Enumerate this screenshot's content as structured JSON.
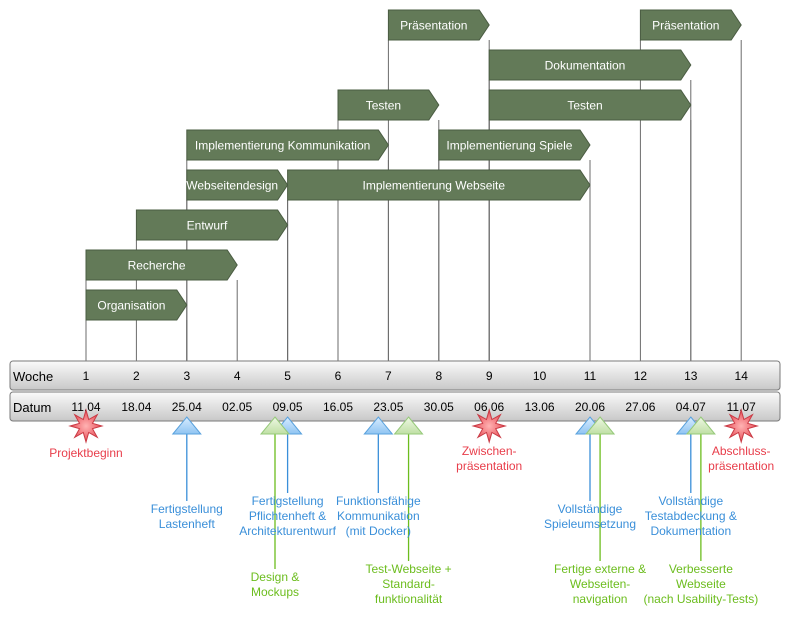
{
  "timeline": {
    "week_label": "Woche",
    "date_label": "Datum",
    "weeks": [
      "1",
      "2",
      "3",
      "4",
      "5",
      "6",
      "7",
      "8",
      "9",
      "10",
      "11",
      "12",
      "13",
      "14"
    ],
    "dates": [
      "11.04",
      "18.04",
      "25.04",
      "02.05",
      "09.05",
      "16.05",
      "23.05",
      "30.05",
      "06.06",
      "13.06",
      "20.06",
      "27.06",
      "04.07",
      "11.07"
    ]
  },
  "tasks": [
    {
      "label": "Organisation",
      "start": 1,
      "end": 3,
      "row": 1
    },
    {
      "label": "Recherche",
      "start": 1,
      "end": 4,
      "row": 2
    },
    {
      "label": "Entwurf",
      "start": 2,
      "end": 5,
      "row": 3
    },
    {
      "label": "Webseitendesign",
      "start": 3,
      "end": 5,
      "row": 4
    },
    {
      "label": "Implementierung Webseite",
      "start": 5,
      "end": 11,
      "row": 4
    },
    {
      "label": "Implementierung Kommunikation",
      "start": 3,
      "end": 7,
      "row": 5
    },
    {
      "label": "Implementierung Spiele",
      "start": 8,
      "end": 11,
      "row": 5
    },
    {
      "label": "Testen",
      "start": 6,
      "end": 8,
      "row": 6
    },
    {
      "label": "Testen",
      "start": 9,
      "end": 13,
      "row": 6
    },
    {
      "label": "Dokumentation",
      "start": 9,
      "end": 13,
      "row": 7
    },
    {
      "label": "Präsentation",
      "start": 7,
      "end": 9,
      "row": 8
    },
    {
      "label": "Präsentation",
      "start": 12,
      "end": 14,
      "row": 8
    }
  ],
  "milestones": [
    {
      "type": "star",
      "x": 1,
      "color": "#e83d4a",
      "lines": [
        "Projektbeginn"
      ]
    },
    {
      "type": "star",
      "x": 9,
      "color": "#e83d4a",
      "lines": [
        "Zwischen-",
        "präsentation"
      ]
    },
    {
      "type": "star",
      "x": 14,
      "color": "#e83d4a",
      "lines": [
        "Abschluss-",
        "präsentation"
      ]
    },
    {
      "type": "tri",
      "x": 3,
      "color": "#3a8fd9",
      "lines": [
        "Fertigstellung",
        "Lastenheft"
      ]
    },
    {
      "type": "tri",
      "x": 5,
      "color": "#3a8fd9",
      "lines": [
        "Fertigstellung",
        "Pflichtenheft &",
        "Architekturentwurf"
      ]
    },
    {
      "type": "tri",
      "x": 4.75,
      "color": "#6cbd1e",
      "lines": [
        "Design &",
        "Mockups"
      ]
    },
    {
      "type": "tri",
      "x": 6.8,
      "color": "#3a8fd9",
      "lines": [
        "Funktionsfähige",
        "Kommunikation",
        "(mit Docker)"
      ]
    },
    {
      "type": "tri",
      "x": 7.4,
      "color": "#6cbd1e",
      "lines": [
        "Test-Webseite +",
        "Standard-",
        "funktionalität"
      ]
    },
    {
      "type": "tri",
      "x": 11,
      "color": "#3a8fd9",
      "lines": [
        "Vollständige",
        "Spieleumsetzung"
      ]
    },
    {
      "type": "tri",
      "x": 11.2,
      "color": "#6cbd1e",
      "lines": [
        "Fertige externe &",
        "Webseiten-",
        "navigation"
      ]
    },
    {
      "type": "tri",
      "x": 13,
      "color": "#3a8fd9",
      "lines": [
        "Vollständige",
        "Testabdeckung &",
        "Dokumentation"
      ]
    },
    {
      "type": "tri",
      "x": 13.2,
      "color": "#6cbd1e",
      "lines": [
        "Verbesserte",
        "Webseite",
        "(nach Usability-Tests)"
      ]
    }
  ],
  "colors": {
    "task_fill": "#637a58",
    "task_stroke": "#4a5c42",
    "task_text": "#ffffff",
    "band_top": "#f7f7f7",
    "band_bottom": "#c9c9c9",
    "blue": "#3a8fd9",
    "green": "#6cbd1e",
    "red": "#e83d4a"
  }
}
